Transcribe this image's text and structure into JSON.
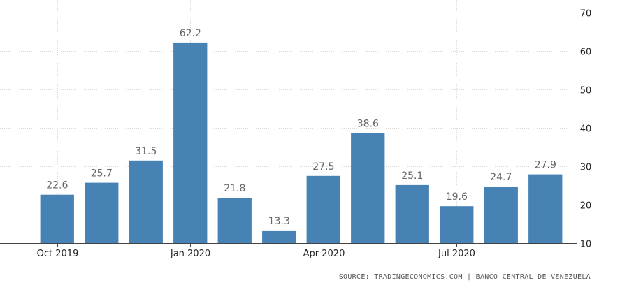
{
  "chart_data": {
    "type": "bar",
    "categories": [
      "Oct 2019",
      "Nov 2019",
      "Dec 2019",
      "Jan 2020",
      "Feb 2020",
      "Mar 2020",
      "Apr 2020",
      "May 2020",
      "Jun 2020",
      "Jul 2020",
      "Aug 2020",
      "Sep 2020"
    ],
    "values": [
      22.6,
      25.7,
      31.5,
      62.2,
      21.8,
      13.3,
      27.5,
      38.6,
      25.1,
      19.6,
      24.7,
      27.9
    ],
    "data_labels": [
      "22.6",
      "25.7",
      "31.5",
      "62.2",
      "21.8",
      "13.3",
      "27.5",
      "38.6",
      "25.1",
      "19.6",
      "24.7",
      "27.9"
    ],
    "x_tick_labels": [
      {
        "category": "Oct 2019",
        "label": "Oct 2019"
      },
      {
        "category": "Jan 2020",
        "label": "Jan 2020"
      },
      {
        "category": "Apr 2020",
        "label": "Apr 2020"
      },
      {
        "category": "Jul 2020",
        "label": "Jul 2020"
      }
    ],
    "y_ticks": [
      10,
      20,
      30,
      40,
      50,
      60,
      70
    ],
    "ylim": [
      10,
      70
    ],
    "y_axis_side": "right",
    "grid": true,
    "bar_color": "#4682b4",
    "title": "",
    "xlabel": "",
    "ylabel": ""
  },
  "source": "SOURCE: TRADINGECONOMICS.COM | BANCO CENTRAL DE VENEZUELA"
}
